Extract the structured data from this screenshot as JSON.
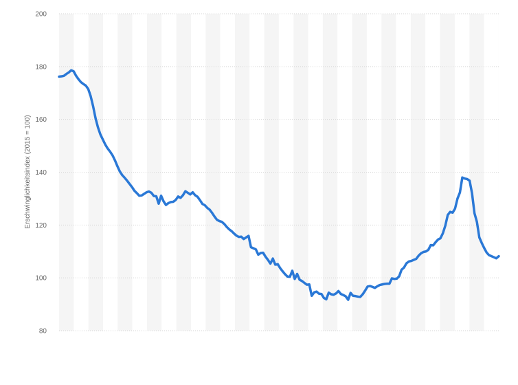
{
  "chart_data": {
    "type": "line",
    "title": "",
    "xlabel": "",
    "ylabel": "Erschwinglichkeitsindex (2015 = 100)",
    "ylim": [
      80,
      200
    ],
    "yticks": [
      80,
      100,
      120,
      140,
      160,
      180,
      200
    ],
    "grid": true,
    "legend": "none",
    "color": "#2a78d6",
    "series": [
      {
        "values": [
          176.2,
          176.3,
          176.5,
          177.2,
          177.8,
          178.6,
          178.2,
          176.5,
          175.2,
          174.1,
          173.4,
          172.8,
          171.5,
          168.8,
          165.0,
          160.5,
          157.0,
          154.3,
          152.4,
          150.5,
          149.0,
          147.8,
          146.4,
          144.5,
          142.3,
          140.3,
          138.9,
          137.9,
          136.8,
          135.6,
          134.4,
          133.0,
          132.1,
          131.1,
          131.2,
          131.8,
          132.4,
          132.7,
          132.2,
          131.0,
          130.9,
          128.1,
          131.1,
          129.0,
          127.6,
          128.3,
          128.7,
          128.8,
          129.5,
          130.8,
          130.3,
          131.3,
          132.8,
          132.2,
          131.6,
          132.4,
          131.3,
          130.7,
          129.4,
          128.0,
          127.5,
          126.5,
          125.8,
          124.6,
          123.2,
          122.0,
          121.5,
          121.2,
          120.4,
          119.3,
          118.4,
          117.7,
          116.8,
          116.0,
          115.5,
          115.6,
          114.7,
          115.3,
          115.9,
          111.6,
          111.2,
          110.8,
          108.8,
          109.4,
          109.5,
          108.0,
          106.8,
          105.4,
          107.3,
          105.0,
          105.2,
          103.7,
          102.5,
          101.4,
          100.5,
          100.4,
          102.7,
          99.6,
          101.5,
          99.3,
          98.8,
          98.1,
          97.4,
          97.5,
          93.2,
          94.5,
          94.8,
          94.0,
          93.9,
          92.4,
          91.9,
          94.4,
          93.8,
          93.6,
          94.1,
          95.0,
          93.9,
          93.5,
          93.0,
          91.7,
          94.3,
          93.2,
          93.1,
          92.9,
          92.8,
          93.8,
          95.2,
          96.7,
          96.9,
          96.6,
          96.2,
          96.8,
          97.3,
          97.5,
          97.7,
          97.8,
          97.8,
          99.8,
          99.6,
          99.7,
          100.6,
          103.1,
          103.9,
          105.5,
          106.2,
          106.4,
          106.8,
          107.2,
          108.4,
          109.3,
          109.8,
          110.0,
          110.6,
          112.4,
          112.3,
          113.5,
          114.5,
          115.0,
          116.9,
          119.8,
          123.8,
          125.0,
          124.7,
          126.2,
          130.0,
          132.3,
          138.0,
          137.6,
          137.4,
          136.8,
          132.0,
          124.5,
          121.2,
          115.3,
          113.2,
          111.3,
          109.6,
          108.6,
          108.2,
          107.8,
          107.4,
          108.2
        ]
      }
    ]
  }
}
